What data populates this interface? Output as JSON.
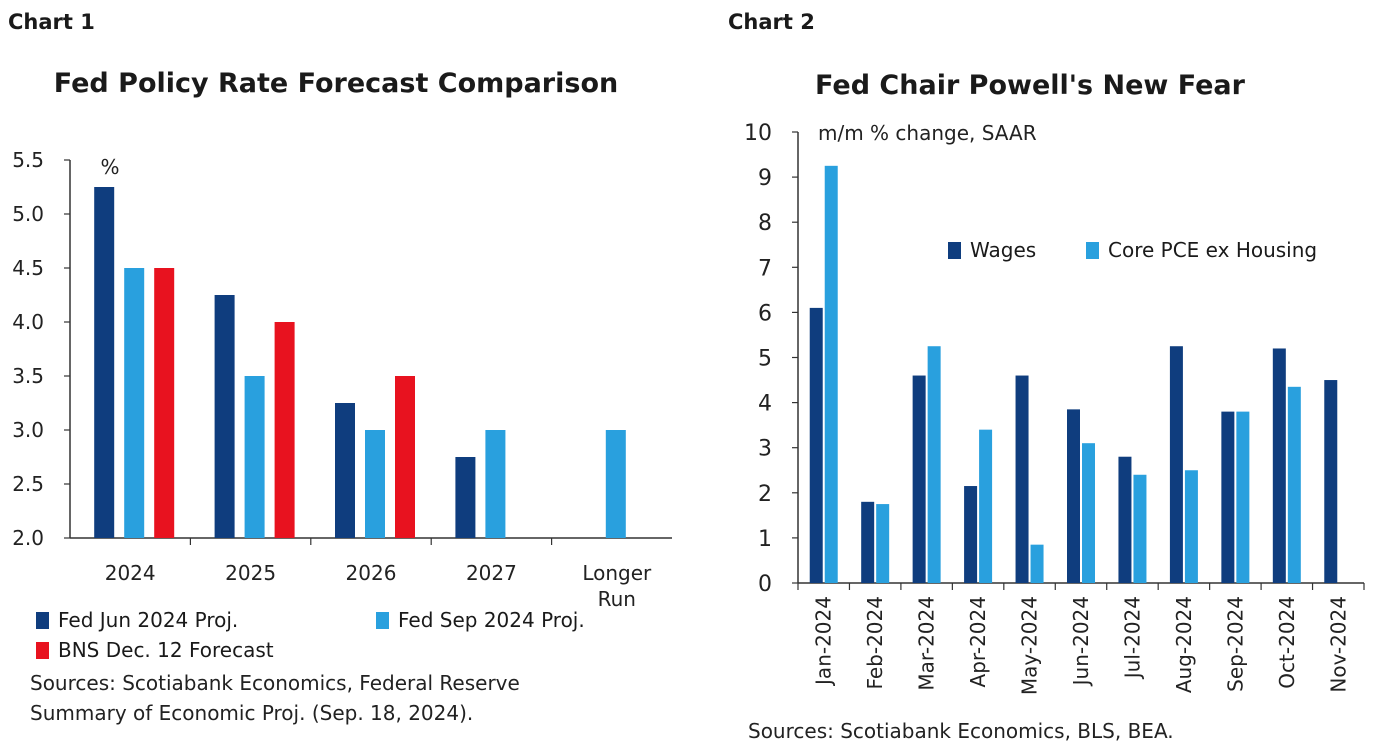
{
  "chart_data": [
    {
      "type": "bar",
      "label": "Chart 1",
      "title": "Fed Policy Rate Forecast Comparison",
      "unit_label": "%",
      "categories": [
        "2024",
        "2025",
        "2026",
        "2027",
        "Longer Run"
      ],
      "series": [
        {
          "name": "Fed Jun 2024 Proj.",
          "color": "#0f3d7e",
          "values": [
            5.25,
            4.25,
            3.25,
            2.75,
            null
          ]
        },
        {
          "name": "Fed Sep 2024 Proj.",
          "color": "#29a0de",
          "values": [
            4.5,
            3.5,
            3.0,
            3.0,
            3.0
          ]
        },
        {
          "name": "BNS Dec. 12 Forecast",
          "color": "#e8121f",
          "values": [
            4.5,
            4.0,
            3.5,
            null,
            null
          ]
        }
      ],
      "ylim": [
        2.0,
        5.5
      ],
      "yticks": [
        "2.0",
        "2.5",
        "3.0",
        "3.5",
        "4.0",
        "4.5",
        "5.0",
        "5.5"
      ],
      "grid": false,
      "legend_position": "bottom",
      "sources": [
        "Sources: Scotiabank Economics, Federal Reserve",
        "Summary of Economic Proj. (Sep. 18, 2024)."
      ]
    },
    {
      "type": "bar",
      "label": "Chart 2",
      "title": "Fed Chair Powell's New Fear",
      "unit_label": "m/m % change, SAAR",
      "categories": [
        "Jan-2024",
        "Feb-2024",
        "Mar-2024",
        "Apr-2024",
        "May-2024",
        "Jun-2024",
        "Jul-2024",
        "Aug-2024",
        "Sep-2024",
        "Oct-2024",
        "Nov-2024"
      ],
      "series": [
        {
          "name": "Wages",
          "color": "#0f3d7e",
          "values": [
            6.1,
            1.8,
            4.6,
            2.15,
            4.6,
            3.85,
            2.8,
            5.25,
            3.8,
            5.2,
            4.5
          ]
        },
        {
          "name": "Core PCE ex Housing",
          "color": "#29a0de",
          "values": [
            9.25,
            1.75,
            5.25,
            3.4,
            0.85,
            3.1,
            2.4,
            2.5,
            3.8,
            4.35,
            null
          ]
        }
      ],
      "ylim": [
        0,
        10
      ],
      "yticks": [
        "0",
        "1",
        "2",
        "3",
        "4",
        "5",
        "6",
        "7",
        "8",
        "9",
        "10"
      ],
      "grid": false,
      "legend_position": "top-right",
      "sources": [
        "Sources: Scotiabank Economics, BLS, BEA."
      ]
    }
  ]
}
